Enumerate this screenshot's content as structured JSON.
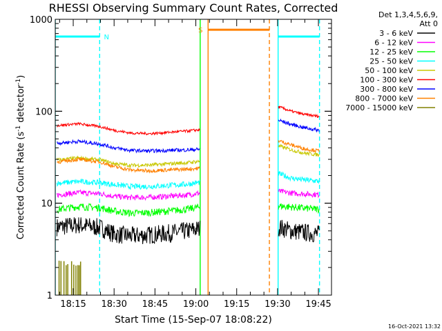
{
  "chart_data": {
    "type": "line",
    "title": "RHESSI Observing Summary Count Rates, Corrected",
    "xlabel": "Start Time (15-Sep-07 18:08:22)",
    "ylabel_main": "Corrected Count Rate (s",
    "ylabel_sup1": "-1",
    "ylabel_mid": " detector",
    "ylabel_sup2": "-1",
    "ylabel_end": ")",
    "y_scale": "log",
    "ylim": [
      1,
      1000
    ],
    "xlim_minutes": [
      1088.4,
      1189.8
    ],
    "x_ticks": [
      {
        "label": "18:15",
        "minutes": 1095
      },
      {
        "label": "18:30",
        "minutes": 1110
      },
      {
        "label": "18:45",
        "minutes": 1125
      },
      {
        "label": "19:00",
        "minutes": 1140
      },
      {
        "label": "19:15",
        "minutes": 1155
      },
      {
        "label": "19:30",
        "minutes": 1170
      },
      {
        "label": "19:45",
        "minutes": 1185
      }
    ],
    "y_tick_labels": [
      {
        "label": "1",
        "value": 1
      },
      {
        "label": "10",
        "value": 10
      },
      {
        "label": "100",
        "value": 100
      },
      {
        "label": "1000",
        "value": 1000
      }
    ],
    "legend_header": [
      "Det 1,3,4,5,6,9,",
      "Att 0"
    ],
    "legend_position": "right",
    "series": [
      {
        "name": "3 - 6 keV",
        "color": "#000000",
        "segments": [
          {
            "t": [
              1089,
              1097,
              1105,
              1110,
              1116,
              1123,
              1130,
              1137,
              1141.5
            ],
            "v": [
              5.5,
              5.8,
              5.4,
              4.6,
              4.4,
              4.5,
              4.7,
              5.0,
              5.3
            ]
          },
          {
            "t": [
              1170.3,
              1175,
              1180,
              1185.3
            ],
            "v": [
              5.5,
              5.0,
              4.8,
              4.6
            ]
          }
        ],
        "noise": 0.1
      },
      {
        "name": "6 - 12 keV",
        "color": "#ff00ff",
        "segments": [
          {
            "t": [
              1089,
              1097,
              1105,
              1110,
              1116,
              1123,
              1130,
              1137,
              1141.5
            ],
            "v": [
              12.3,
              13.0,
              12.7,
              11.9,
              11.5,
              11.6,
              11.9,
              12.3,
              12.9
            ]
          },
          {
            "t": [
              1170.3,
              1175,
              1180,
              1185.3
            ],
            "v": [
              13.5,
              12.9,
              12.6,
              12.4
            ]
          }
        ],
        "noise": 0.03
      },
      {
        "name": "12 - 25 keV",
        "color": "#00ff00",
        "segments": [
          {
            "t": [
              1089,
              1097,
              1105,
              1110,
              1116,
              1123,
              1130,
              1137,
              1141.5
            ],
            "v": [
              8.5,
              9.2,
              8.9,
              8.2,
              7.8,
              7.9,
              8.2,
              8.6,
              9.1
            ]
          },
          {
            "t": [
              1170.3,
              1175,
              1180,
              1185.3
            ],
            "v": [
              9.3,
              9.1,
              8.8,
              8.6
            ]
          }
        ],
        "noise": 0.04
      },
      {
        "name": "25 - 50 keV",
        "color": "#00ffff",
        "segments": [
          {
            "t": [
              1089,
              1097,
              1105,
              1110,
              1116,
              1123,
              1130,
              1137,
              1141.5
            ],
            "v": [
              16.5,
              17.2,
              16.7,
              15.9,
              15.2,
              15.2,
              15.6,
              16.1,
              16.8
            ]
          },
          {
            "t": [
              1170.3,
              1175,
              1180,
              1185.3
            ],
            "v": [
              21.0,
              18.7,
              17.9,
              17.3
            ]
          }
        ],
        "noise": 0.03
      },
      {
        "name": "50 - 100 keV",
        "color": "#c8c800",
        "segments": [
          {
            "t": [
              1089,
              1097,
              1105,
              1110,
              1116,
              1123,
              1130,
              1137,
              1141.5
            ],
            "v": [
              29.5,
              31.0,
              29.5,
              27.0,
              25.8,
              26.0,
              26.8,
              27.6,
              28.6
            ]
          },
          {
            "t": [
              1170.3,
              1175,
              1180,
              1185.3
            ],
            "v": [
              42.0,
              38.0,
              35.0,
              33.5
            ]
          }
        ],
        "noise": 0.02
      },
      {
        "name": "100 - 300 keV",
        "color": "#ff0000",
        "segments": [
          {
            "t": [
              1089,
              1097,
              1105,
              1110,
              1116,
              1123,
              1130,
              1137,
              1141.5
            ],
            "v": [
              70.0,
              73.0,
              68.0,
              62.0,
              58.0,
              57.0,
              59.0,
              61.0,
              63.0
            ]
          },
          {
            "t": [
              1170.3,
              1175,
              1180,
              1185.3
            ],
            "v": [
              112.0,
              100.0,
              92.0,
              88.0
            ]
          }
        ],
        "noise": 0.015
      },
      {
        "name": "300 - 800 keV",
        "color": "#0000ff",
        "segments": [
          {
            "t": [
              1089,
              1097,
              1105,
              1110,
              1116,
              1123,
              1130,
              1137,
              1141.5
            ],
            "v": [
              45.0,
              47.0,
              44.0,
              40.0,
              37.5,
              37.0,
              37.5,
              38.0,
              38.5
            ]
          },
          {
            "t": [
              1170.3,
              1175,
              1180,
              1185.3
            ],
            "v": [
              80.0,
              72.0,
              66.0,
              62.0
            ]
          }
        ],
        "noise": 0.02
      },
      {
        "name": "800 - 7000 keV",
        "color": "#ff8000",
        "segments": [
          {
            "t": [
              1089,
              1097,
              1105,
              1110,
              1116,
              1123,
              1130,
              1137,
              1141.5
            ],
            "v": [
              28.0,
              30.0,
              28.0,
              25.0,
              23.0,
              22.5,
              23.0,
              23.5,
              24.0
            ]
          },
          {
            "t": [
              1170.3,
              1175,
              1180,
              1185.3
            ],
            "v": [
              48.0,
              43.0,
              39.0,
              37.0
            ]
          }
        ],
        "noise": 0.02
      },
      {
        "name": "7000 - 15000 keV",
        "color": "#808000",
        "segments": [],
        "spikes_t": [
          1089.8,
          1090.5,
          1091.6,
          1092.4,
          1093.0,
          1094.4,
          1095.2,
          1096.0,
          1096.7,
          1097.2,
          1097.7
        ],
        "spike_v": 2.4,
        "noise": 0
      }
    ],
    "annotations": [
      {
        "type": "flag",
        "label": "N",
        "color": "#00ffff",
        "t_start": 1088.4,
        "t_end": 1104.7,
        "v": 650
      },
      {
        "type": "flag",
        "label": "S",
        "color": "#ff8000",
        "t_start": 1144.5,
        "t_end": 1167.0,
        "v": 770
      },
      {
        "type": "flag",
        "label": "",
        "color": "#00ffff",
        "t_start": 1170.2,
        "t_end": 1185.4,
        "v": 650
      }
    ],
    "vlines": [
      {
        "t": 1088.4,
        "color": "#00ffff",
        "style": "solid"
      },
      {
        "t": 1104.7,
        "color": "#00ffff",
        "style": "dashed"
      },
      {
        "t": 1141.6,
        "color": "#00ff00",
        "style": "solid"
      },
      {
        "t": 1144.5,
        "color": "#ff8000",
        "style": "solid"
      },
      {
        "t": 1167.0,
        "color": "#ff8000",
        "style": "dashed"
      },
      {
        "t": 1170.2,
        "color": "#00ffff",
        "style": "solid"
      },
      {
        "t": 1185.4,
        "color": "#00ffff",
        "style": "dashed"
      }
    ],
    "footer_date": "16-Oct-2021 13:32"
  }
}
